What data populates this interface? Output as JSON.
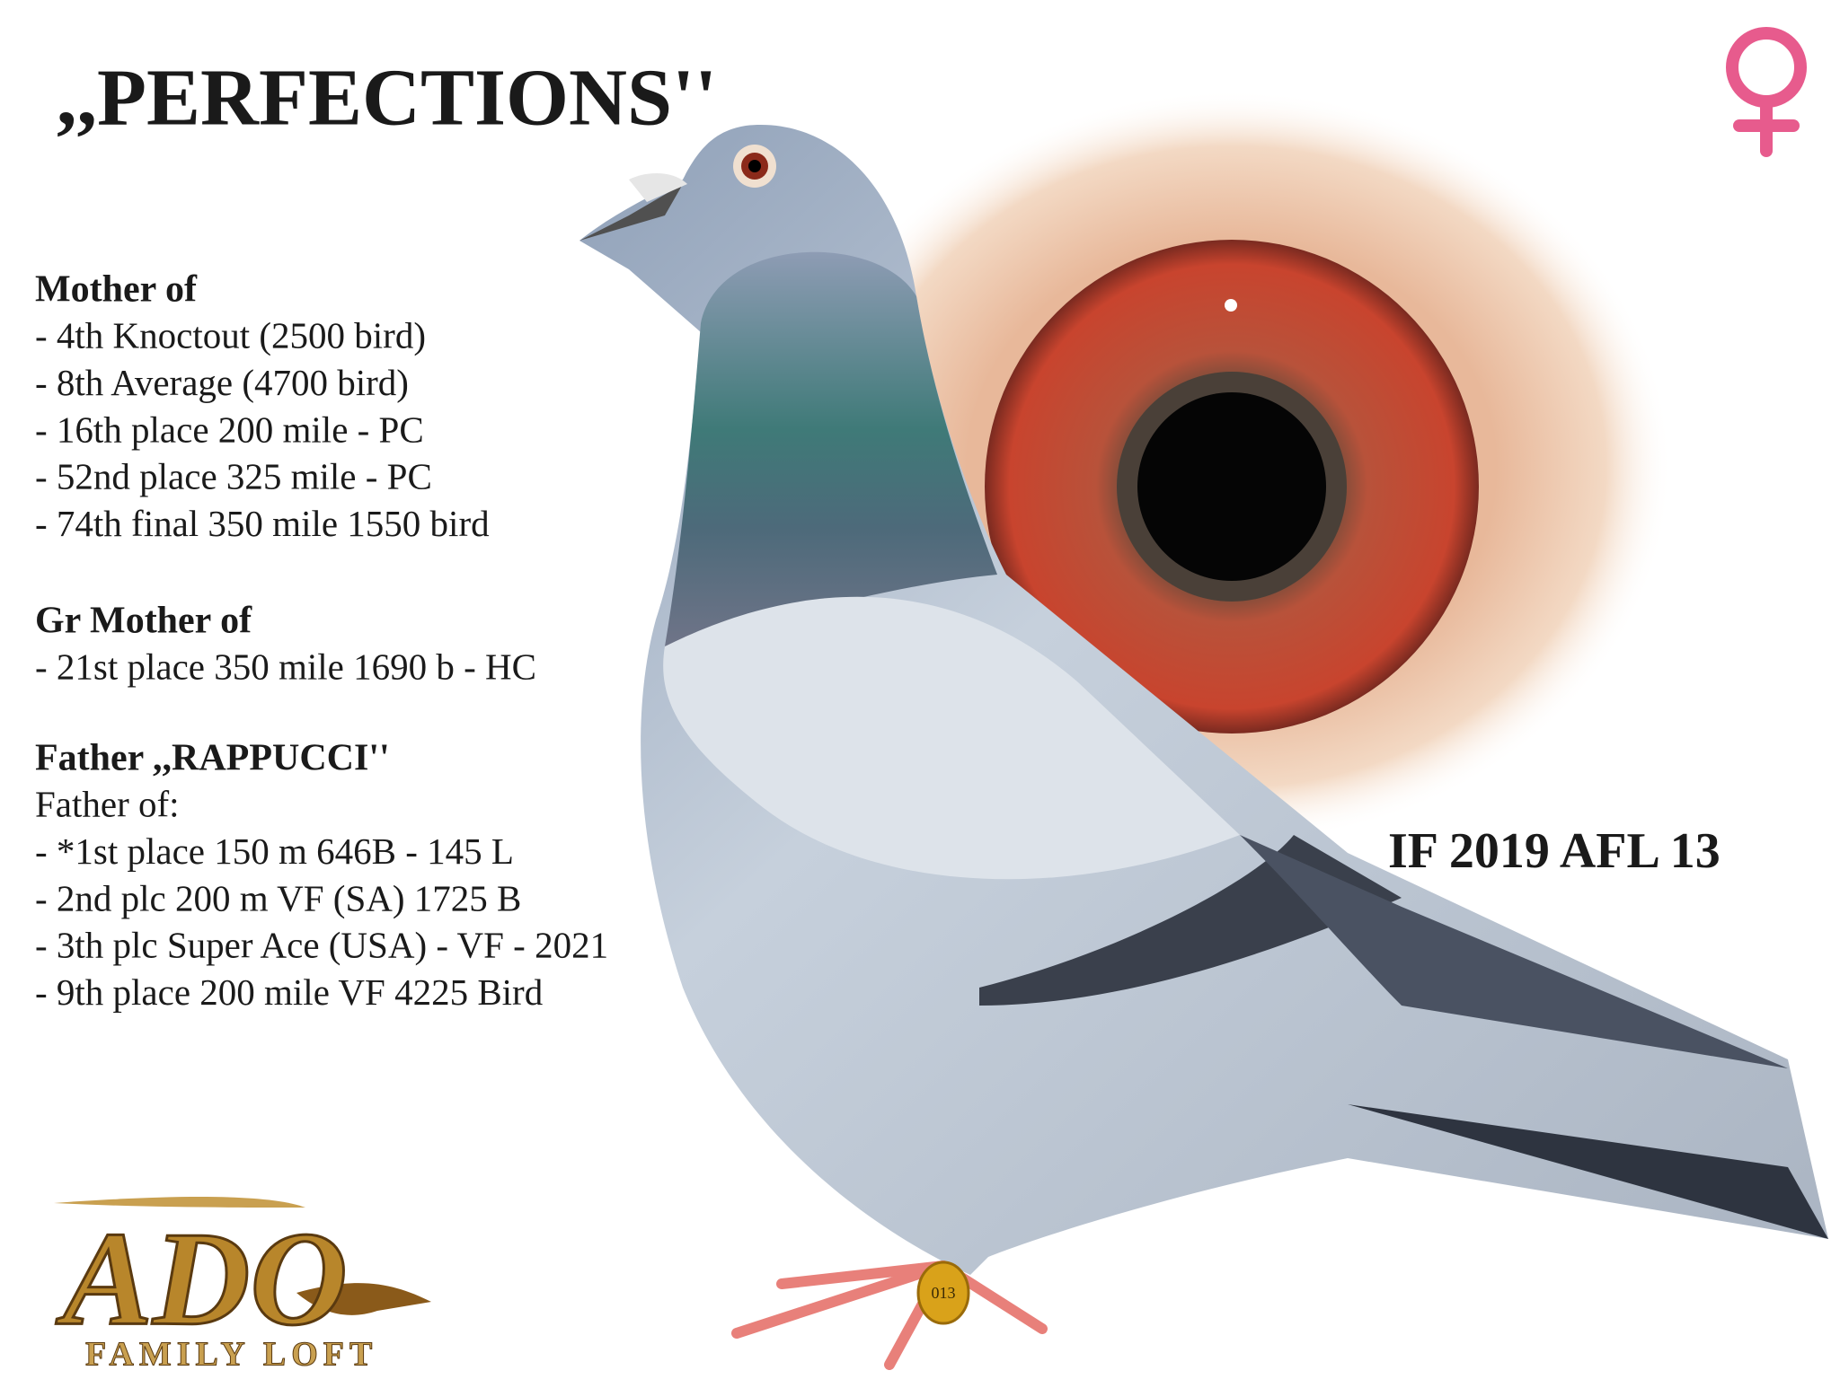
{
  "title": ",,PERFECTIONS''",
  "sections": [
    {
      "heading": "Mother of",
      "items": [
        "- 4th Knoctout (2500 bird)",
        "- 8th Average (4700 bird)",
        "- 16th place 200 mile - PC",
        "- 52nd place 325 mile - PC",
        "- 74th final 350 mile 1550 bird"
      ]
    },
    {
      "heading": "Gr Mother of",
      "items": [
        "- 21st place 350 mile 1690 b - HC"
      ]
    },
    {
      "heading": "Father ,,RAPPUCCI''",
      "subheading": "Father of:",
      "items": [
        "- *1st place 150 m 646B - 145 L",
        "- 2nd plc 200 m VF (SA) 1725 B",
        "- 3th plc Super Ace (USA) - VF - 2021",
        "- 9th place 200 mile VF 4225 Bird"
      ]
    }
  ],
  "ring_id": "IF 2019 AFL 13",
  "ring_band": "013",
  "logo": {
    "mark": "ADO",
    "text": "FAMILY LOFT"
  }
}
